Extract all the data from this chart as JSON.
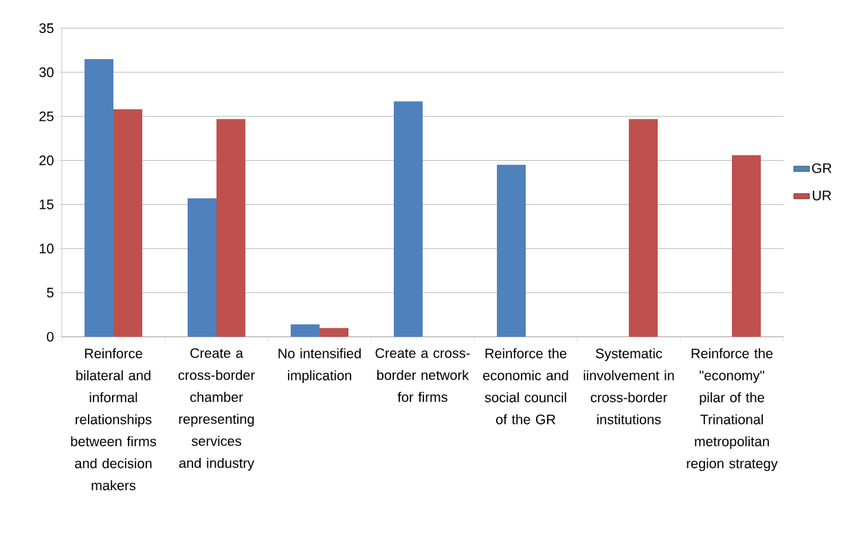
{
  "chart_data": {
    "type": "bar",
    "categories": [
      "Reinforce bilateral and informal relationships between firms and decision makers",
      "Create a cross-border chamber representing services and industry",
      "No intensified implication",
      "Create a cross-border network for firms",
      "Reinforce the economic and social council of the GR",
      "Systematic iinvolvement in cross-border institutions",
      "Reinforce the \"economy\" pilar of the Trinational metropolitan region strategy"
    ],
    "series": [
      {
        "name": "GR",
        "color": "#4f81bd",
        "values": [
          31.5,
          15.7,
          1.4,
          26.7,
          19.5,
          null,
          null
        ]
      },
      {
        "name": "UR",
        "color": "#c0504d",
        "values": [
          25.8,
          24.7,
          1.0,
          null,
          null,
          24.7,
          20.6
        ]
      }
    ],
    "ylim": [
      0,
      35
    ],
    "yticks": [
      0,
      5,
      10,
      15,
      20,
      25,
      30,
      35
    ],
    "grid": "y",
    "legend": "right"
  }
}
